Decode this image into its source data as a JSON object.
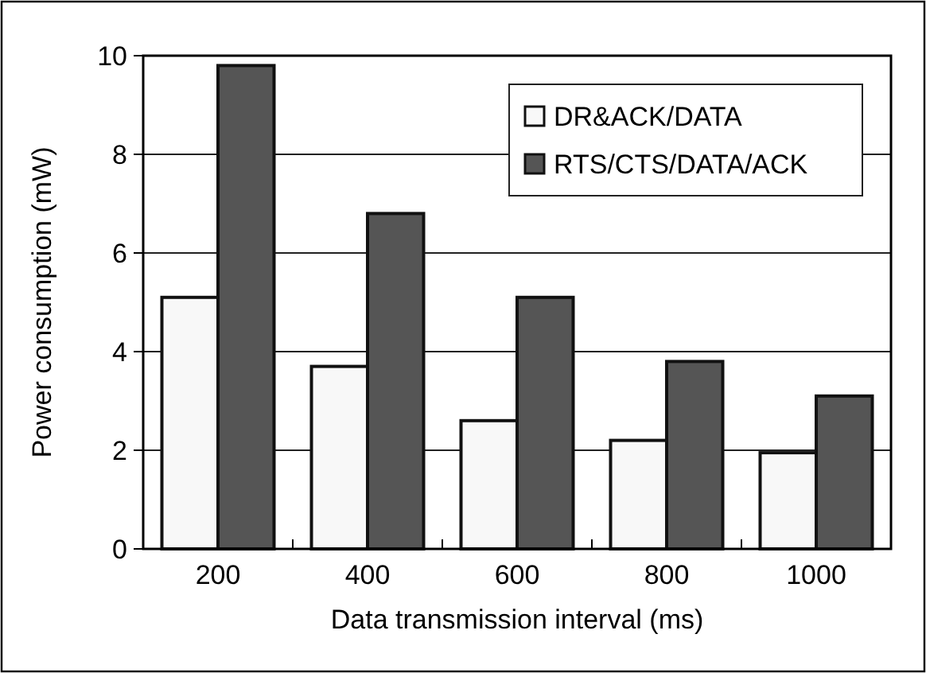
{
  "chart_data": {
    "type": "bar",
    "xlabel": "Data transmission interval (ms)",
    "ylabel": "Power consumption (mW)",
    "categories": [
      "200",
      "400",
      "600",
      "800",
      "1000"
    ],
    "series": [
      {
        "name": "DR&ACK/DATA",
        "color": "#f8f8f8",
        "values": [
          5.1,
          3.7,
          2.6,
          2.2,
          1.95
        ]
      },
      {
        "name": "RTS/CTS/DATA/ACK",
        "color": "#555555",
        "values": [
          9.8,
          6.8,
          5.1,
          3.8,
          3.1
        ]
      }
    ],
    "ylim": [
      0,
      10
    ],
    "yticks": [
      0,
      2,
      4,
      6,
      8,
      10
    ],
    "grid": "y",
    "legend": "top right"
  }
}
